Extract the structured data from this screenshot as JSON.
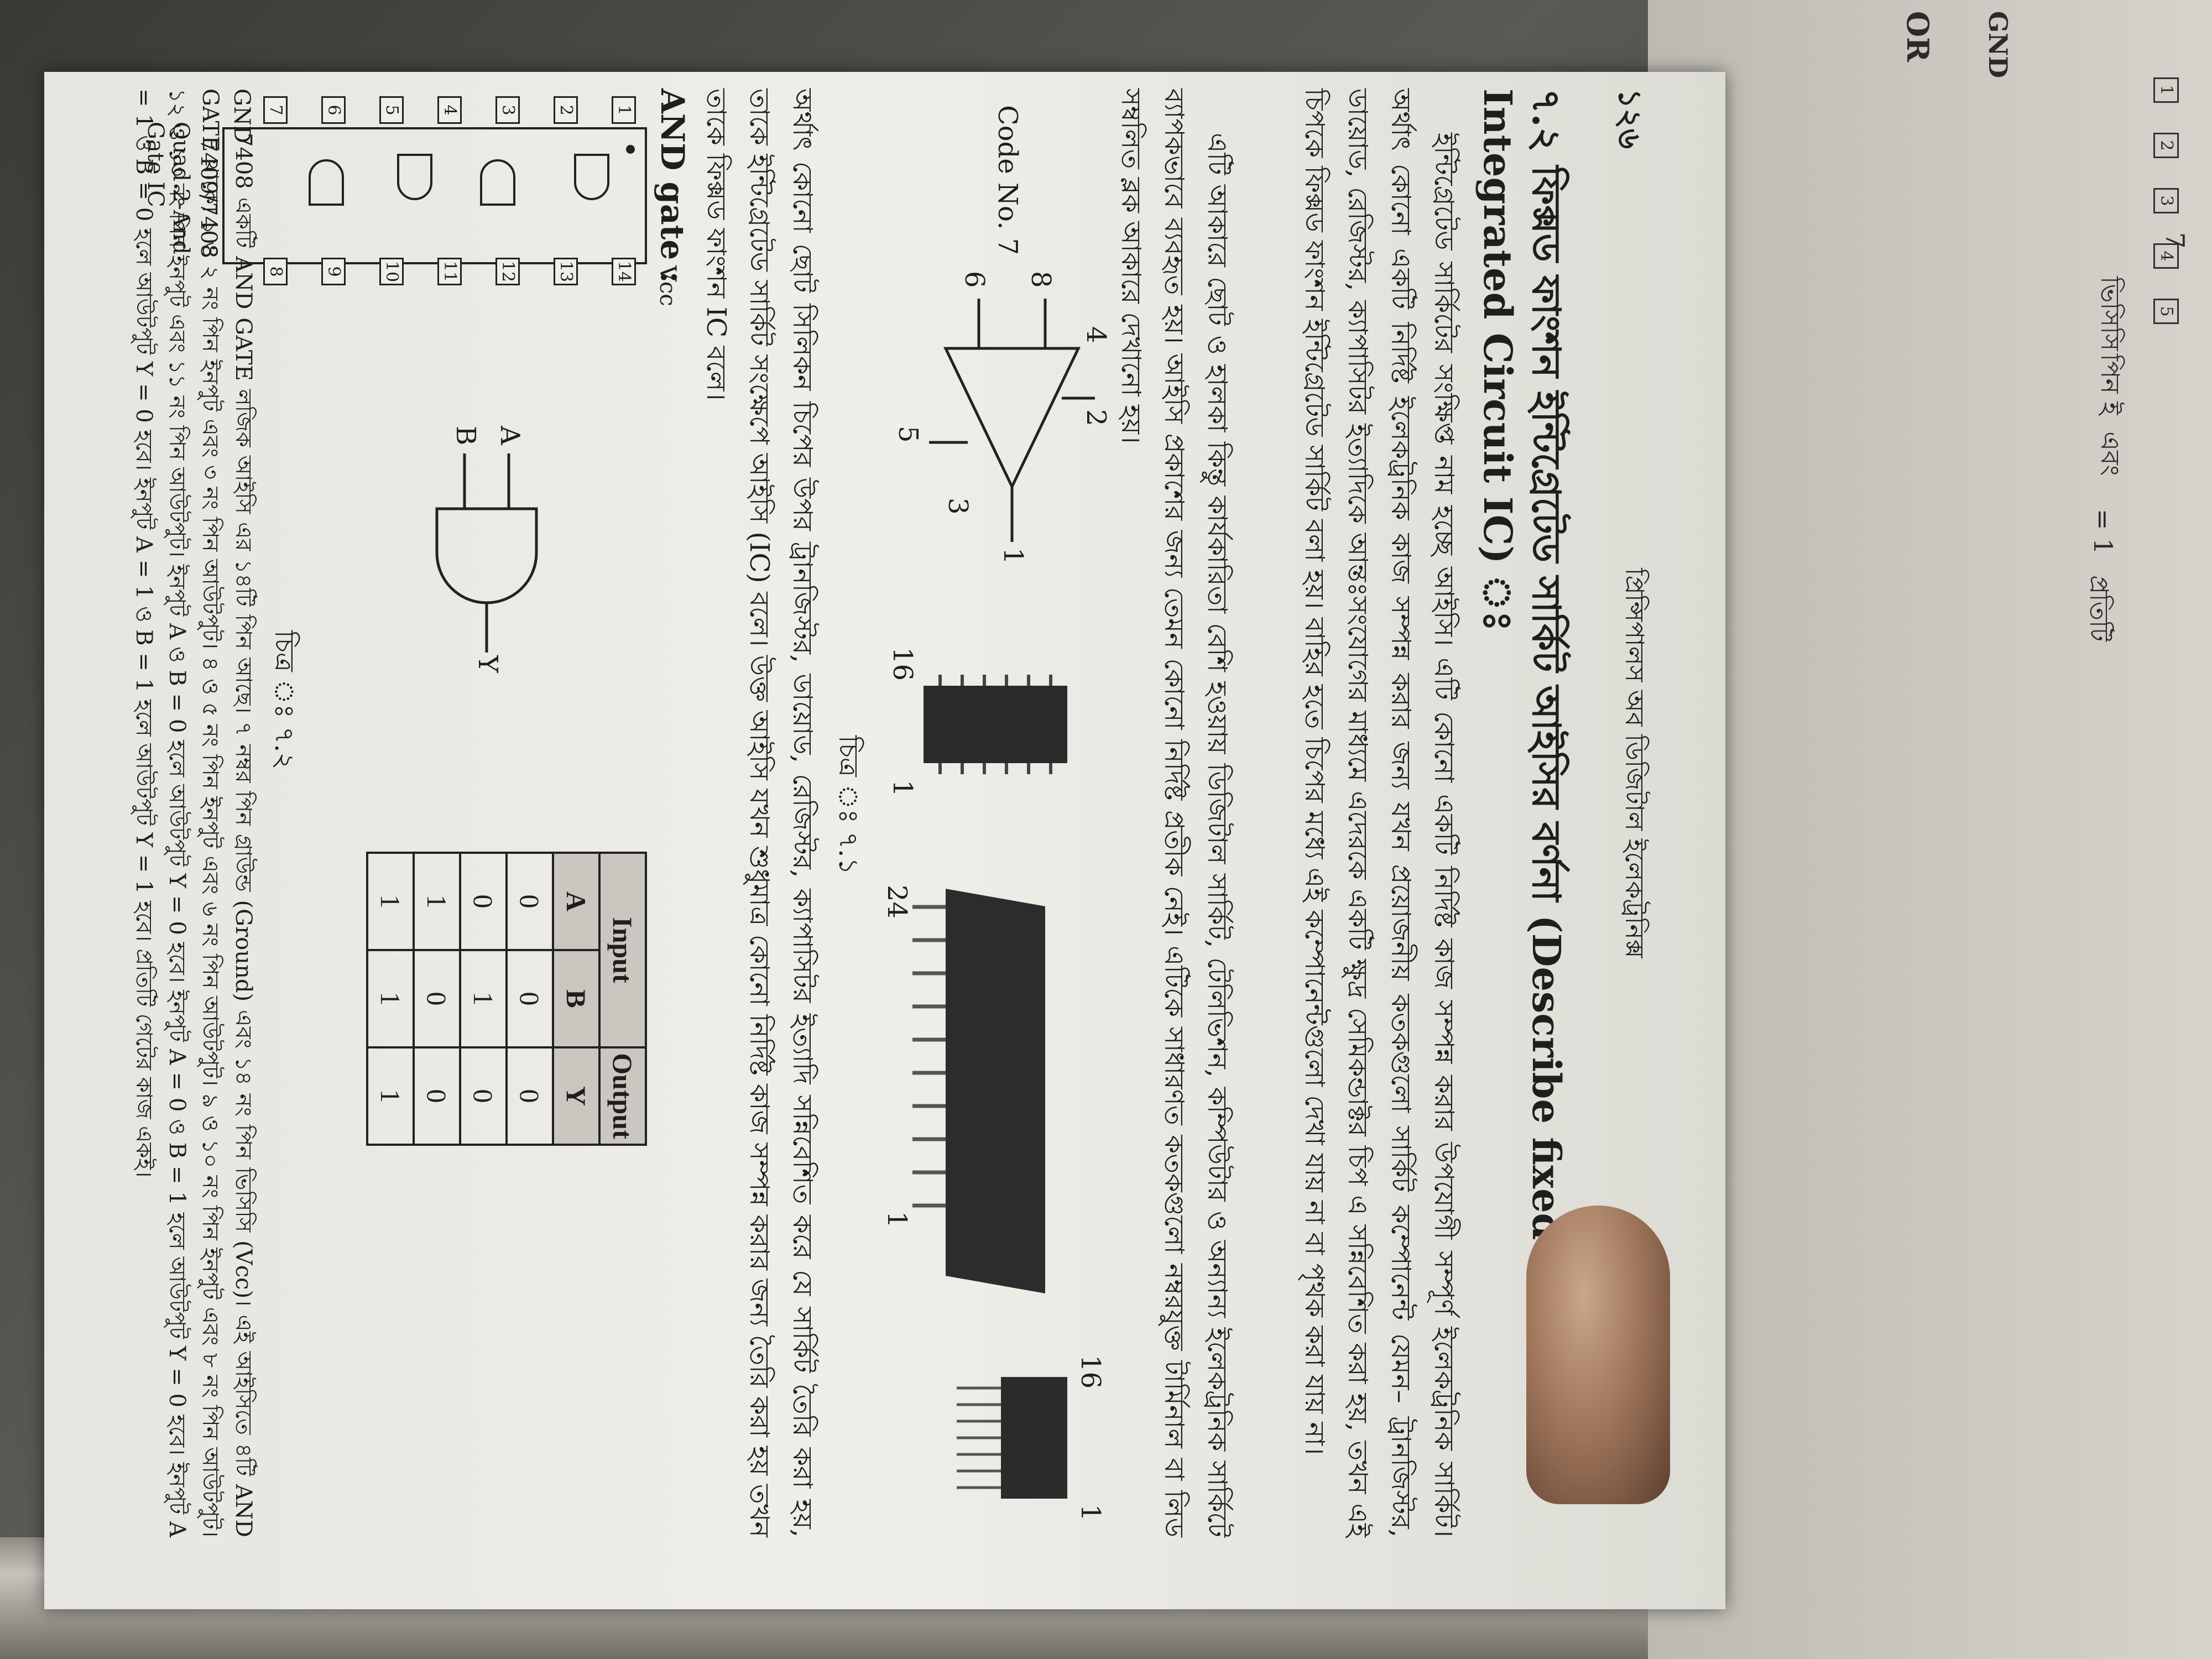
{
  "page": {
    "number": "১২৬",
    "running_header": "প্রিন্সিপালস অব ডিজিটাল ইলেকট্রনিক্স",
    "heading": "৭.২ ফিক্সড ফাংশন ইন্টিগ্রেটেড সার্কিট আইসির বর্ণনা (Describe fixed function Integrated Circuit IC) ঃ",
    "para1": "ইন্টিগ্রেটেড সার্কিটের সংক্ষিপ্ত নাম হচ্ছে আইসি। এটি কোনো একটি নির্দিষ্ট কাজ সম্পন্ন করার উপযোগী সম্পূর্ণ ইলেকট্রনিক সার্কিট। অর্থাৎ কোনো একটি নির্দিষ্ট ইলেকট্রনিক কাজ সম্পন্ন করার জন্য যখন প্রয়োজনীয় কতকগুলো সার্কিট কম্পোনেন্ট যেমন– ট্রানজিস্টর, ডায়োড, রেজিস্টর, ক্যাপাসিটর ইত্যাদিকে আন্তঃসংযোগের মাধ্যমে এদেরকে একটি ক্ষুদ্র সেমিকন্ডাক্টর চিপ এ সন্নিবেশিত করা হয়, তখন এই চিপকে ফিক্সড ফাংশন ইন্টিগ্রেটেড সার্কিট বলা হয়। বাহির হতে চিপের মধ্যে এই কম্পোনেন্টগুলো দেখা যায় না বা পৃথক করা যায় না।",
    "para2": "এটি আকারে ছোট ও হালকা কিন্তু কার্যকারিতা বেশি হওয়ায় ডিজিটাল সার্কিট, টেলিভিশন, কম্পিউটার ও অন্যান্য ইলেকট্রনিক সার্কিটে ব্যাপকভাবে ব্যবহৃত হয়। আইসি প্রকাশের জন্য তেমন কোনো নির্দিষ্ট প্রতীক নেই। এটিকে সাধারণত কতকগুলো নম্বরযুক্ত টার্মিনাল বা লিড সম্বলিত ব্লক আকারে দেখানো হয়।",
    "fig1": {
      "code_label": "Code No. 7",
      "pins_a": [
        "8",
        "6",
        "4",
        "2",
        "5",
        "3",
        "1"
      ],
      "pins_b": [
        "16",
        "1",
        "24",
        "1",
        "16",
        "1"
      ],
      "caption": "চিত্র ঃ ৭.১"
    },
    "para3": "অর্থাৎ কোনো ছোট সিলিকন চিপের উপর ট্রানজিস্টর, ডায়োড, রেজিস্টর, ক্যাপাসিটর ইত্যাদি সন্নিবেশিত করে যে সার্কিট তৈরি করা হয়, তাকে ইন্টিগ্রেটেড সার্কিট সংক্ষেপে আইসি (IC) বলে। উক্ত আইসি যখন শুধুমাত্র কোনো নির্দিষ্ট কাজ সম্পন্ন করার জন্য তৈরি করা হয় তখন তাকে ফিক্সড ফাংশন IC বলে।",
    "and_gate_title": "AND gate :",
    "ic": {
      "left_pins": [
        "1",
        "2",
        "3",
        "4",
        "5",
        "6",
        "7"
      ],
      "right_pins": [
        "14",
        "13",
        "12",
        "11",
        "10",
        "9",
        "8"
      ],
      "vcc": "Vcc",
      "gnd": "GND",
      "part": "7409/7408",
      "desc": "Quad 2-And Gate IC"
    },
    "gate": {
      "a": "A",
      "b": "B",
      "y": "Y"
    },
    "truth_table": {
      "group_input": "Input",
      "group_output": "Output",
      "headers": [
        "A",
        "B",
        "Y"
      ],
      "rows": [
        [
          "0",
          "0",
          "0"
        ],
        [
          "0",
          "1",
          "0"
        ],
        [
          "1",
          "0",
          "0"
        ],
        [
          "1",
          "1",
          "1"
        ]
      ]
    },
    "fig2_caption": "চিত্র ঃ ৭.২",
    "para4": "7408 একটি AND GATE লজিক আইসি এর ১৪টি পিন আছে। ৭ নম্বর পিন গ্রাউন্ড (Ground) এবং ১৪ নং পিন ভিসিসি (Vcc)। এই আইসিতে ৪টি AND GATE থাকে। ১ ও ২ নং পিন ইনপুট এবং ৩ নং পিন আউটপুট। ৪ ও ৫ নং পিন ইনপুট এবং ৬ নং পিন আউটপুট। ৯ ও ১০ নং পিন ইনপুট এবং ৮ নং পিন আউটপুট। ১২ ও ১৩ নং পিন ইনপুট এবং ১১ নং পিন আউটপুট। ইনপুট A ও B = 0 হলে আউটপুট Y = 0 হবে। ইনপুট A = 0 ও B = 1 হলে আউটপুট Y = 0 হবে। ইনপুট A = 1 ও B = 0 হলে আউটপুট Y = 0 হবে। ইনপুট A = 1 ও B = 1 হলে আউটপুট Y = 1 হবে। প্রতিটি গেটের কাজ একই।"
  },
  "next_page": {
    "lines": [
      "OR",
      "GND",
      "7",
      "ভিসিসি",
      "পিন ই",
      "এবং",
      "= 1",
      "প্রতিটি"
    ],
    "pins": [
      "1",
      "2",
      "3",
      "4",
      "5"
    ]
  }
}
